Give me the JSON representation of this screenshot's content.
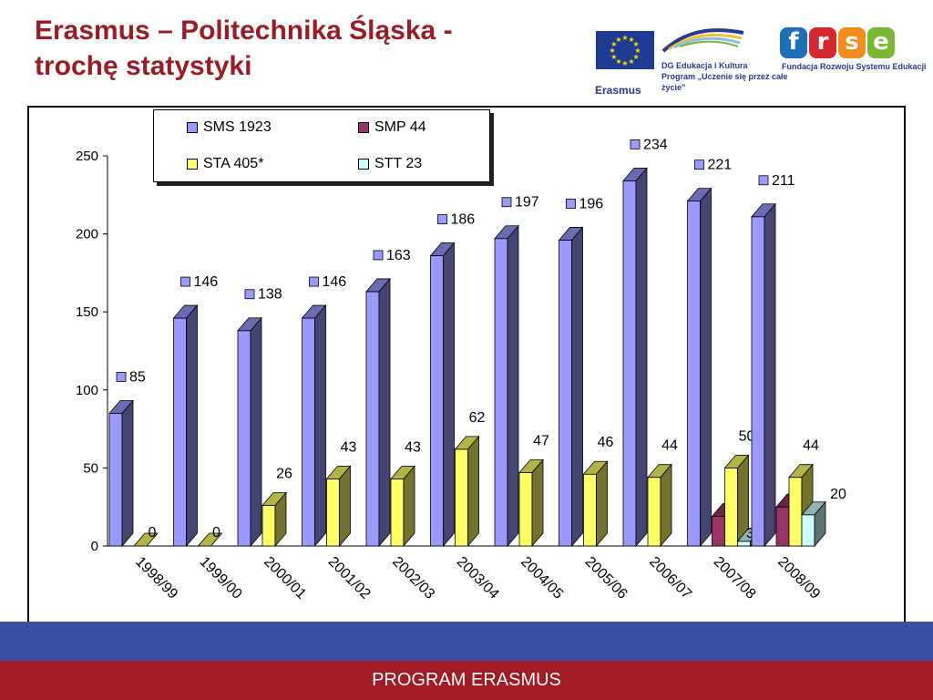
{
  "header": {
    "title_line1": "Erasmus – Politechnika Śląska -",
    "title_line2": "trochę statystyki"
  },
  "logos": {
    "dg_line1": "DG Edukacja i Kultura",
    "dg_line2": "Program „Uczenie się przez całe życie”",
    "erasmus": "Erasmus",
    "frse_letters": [
      "f",
      "r",
      "s",
      "e"
    ],
    "frse_colors": [
      "#1d6fb8",
      "#d6262f",
      "#f28c1c",
      "#7ab733"
    ],
    "frse_caption": "Fundacja Rozwoju Systemu Edukacji"
  },
  "footer": {
    "label": "PROGRAM ERASMUS",
    "blue": "#3a4fa0",
    "red": "#a11a24"
  },
  "chart_data": {
    "type": "bar",
    "categories": [
      "1998/99",
      "1999/00",
      "2000/01",
      "2001/02",
      "2002/03",
      "2003/04",
      "2004/05",
      "2005/06",
      "2006/07",
      "2007/08",
      "2008/09"
    ],
    "ylim": [
      0,
      250
    ],
    "yticks": [
      "0",
      "50",
      "100",
      "150",
      "200",
      "250"
    ],
    "grid": false,
    "legend_position": "top",
    "series": [
      {
        "name": "SMS 1923",
        "color": "#9999ff",
        "values": [
          85,
          146,
          138,
          146,
          163,
          186,
          197,
          196,
          234,
          221,
          211
        ],
        "labels": [
          "85",
          "146",
          "138",
          "146",
          "163",
          "186",
          "197",
          "196",
          "234",
          "221",
          "211"
        ]
      },
      {
        "name": "SMP 44",
        "color": "#993366",
        "values": [
          null,
          null,
          null,
          null,
          null,
          null,
          null,
          null,
          null,
          19,
          25
        ],
        "labels": [
          "",
          "",
          "",
          "",
          "",
          "",
          "",
          "",
          "",
          "19",
          "25"
        ]
      },
      {
        "name": "STA 405*",
        "color": "#ffff66",
        "values": [
          0,
          0,
          26,
          43,
          43,
          62,
          47,
          46,
          44,
          50,
          44
        ],
        "labels": [
          "0",
          "0",
          "26",
          "43",
          "43",
          "62",
          "47",
          "46",
          "44",
          "50",
          "44"
        ]
      },
      {
        "name": "STT 23",
        "color": "#ccffff",
        "values": [
          null,
          null,
          null,
          null,
          null,
          null,
          null,
          null,
          null,
          3,
          20
        ],
        "labels": [
          "",
          "",
          "",
          "",
          "",
          "",
          "",
          "",
          "",
          "3",
          "20"
        ]
      }
    ]
  }
}
